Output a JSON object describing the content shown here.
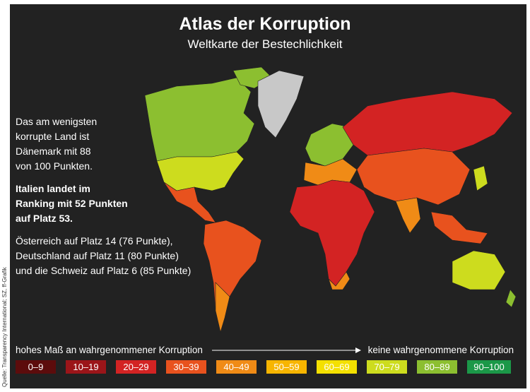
{
  "header": {
    "title": "Atlas der Korruption",
    "subtitle": "Weltkarte der Bestechlichkeit"
  },
  "notes": [
    {
      "lines": [
        "Das am wenigsten",
        "korrupte Land ist",
        "Dänemark mit 88",
        "von 100 Punkten."
      ],
      "bold": false
    },
    {
      "lines": [
        "Italien landet im",
        "Ranking mit 52 Punkten",
        "auf Platz 53."
      ],
      "bold": true
    },
    {
      "lines": [
        "Österreich auf Platz 14 (76 Punkte),",
        "Deutschland auf Platz 11 (80 Punkte)",
        "und die Schweiz auf Platz 6 (85 Punkte)"
      ],
      "bold": false
    }
  ],
  "legend": {
    "left_label": "hohes Maß an wahrgenommener Korruption",
    "right_label": "keine wahrgenommene Korruption",
    "items": [
      {
        "label": "0–9",
        "color": "#5c0c0c"
      },
      {
        "label": "10–19",
        "color": "#9b1519"
      },
      {
        "label": "20–29",
        "color": "#d32323"
      },
      {
        "label": "30–39",
        "color": "#e8521e"
      },
      {
        "label": "40–49",
        "color": "#f08b16"
      },
      {
        "label": "50–59",
        "color": "#f7b500"
      },
      {
        "label": "60–69",
        "color": "#f4e000"
      },
      {
        "label": "70–79",
        "color": "#cddc1e"
      },
      {
        "label": "80–89",
        "color": "#8cbf30"
      },
      {
        "label": "90–100",
        "color": "#1b9848"
      }
    ]
  },
  "source": "Quelle: Transparency International; SZ, ff-Grafik"
}
